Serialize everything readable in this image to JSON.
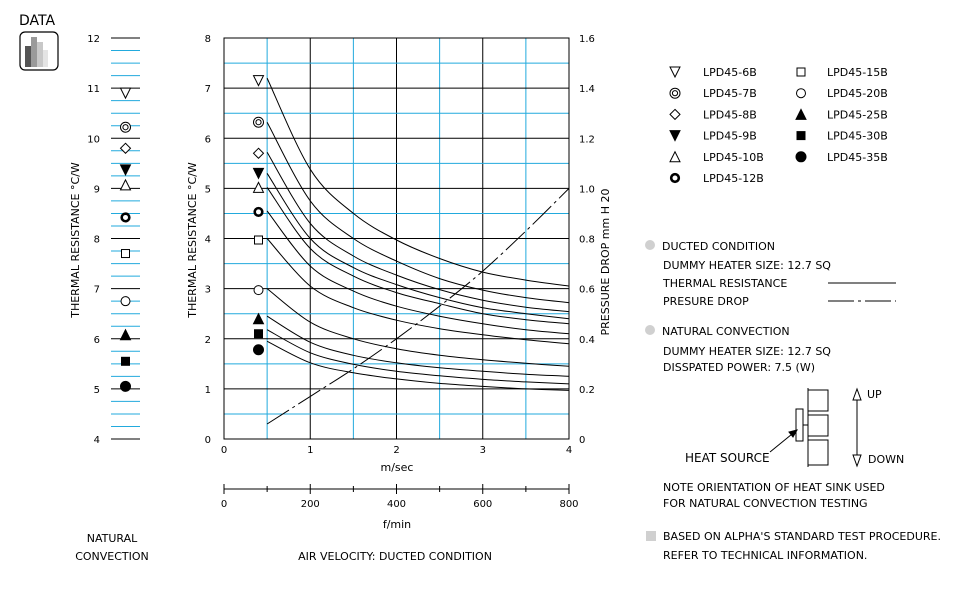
{
  "badge": {
    "label": "DATA"
  },
  "left_chart": {
    "type": "scatter",
    "ylabel": "THERMAL RESISTANCE °C/W",
    "ylim": [
      4,
      12
    ],
    "yticks": [
      "4",
      "5",
      "6",
      "7",
      "8",
      "9",
      "10",
      "11",
      "12"
    ],
    "caption": [
      "NATURAL",
      "CONVECTION"
    ],
    "points": [
      {
        "series": "LPD45-6B",
        "marker": "tri-down-open",
        "y": 10.9
      },
      {
        "series": "LPD45-7B",
        "marker": "double-circle",
        "y": 10.22
      },
      {
        "series": "LPD45-8B",
        "marker": "diamond-open",
        "y": 9.8
      },
      {
        "series": "LPD45-9B",
        "marker": "tri-down-filled",
        "y": 9.37
      },
      {
        "series": "LPD45-10B",
        "marker": "tri-up-open",
        "y": 9.07
      },
      {
        "series": "LPD45-12B",
        "marker": "thick-circle",
        "y": 8.42
      },
      {
        "series": "LPD45-15B",
        "marker": "square-open",
        "y": 7.7
      },
      {
        "series": "LPD45-20B",
        "marker": "circle-open",
        "y": 6.75
      },
      {
        "series": "LPD45-25B",
        "marker": "tri-up-filled",
        "y": 6.08
      },
      {
        "series": "LPD45-30B",
        "marker": "square-filled",
        "y": 5.55
      },
      {
        "series": "LPD45-35B",
        "marker": "circle-filled",
        "y": 5.05
      }
    ]
  },
  "chart_data": {
    "type": "line",
    "xlabel": "m/sec",
    "x2label": "f/min",
    "ylabel": "THERMAL RESISTANCE °C/W",
    "y2label": "PRESSURE DROP mm H 20",
    "xlim": [
      0,
      4
    ],
    "ylim": [
      0,
      8
    ],
    "y2lim": [
      0,
      1.6
    ],
    "xticks": [
      "0",
      "1",
      "2",
      "3",
      "4"
    ],
    "x2ticks": [
      "0",
      "200",
      "400",
      "600",
      "800"
    ],
    "yticks": [
      "0",
      "1",
      "2",
      "3",
      "4",
      "5",
      "6",
      "7",
      "8"
    ],
    "y2ticks": [
      "0",
      "0.2",
      "0.4",
      "0.6",
      "0.8",
      "1.0",
      "1.2",
      "1.4",
      "1.6"
    ],
    "caption": "AIR VELOCITY: DUCTED CONDITION",
    "x": [
      0.5,
      1,
      1.5,
      2,
      2.5,
      3,
      3.5,
      4
    ],
    "series": [
      {
        "name": "LPD45-6B",
        "marker": "tri-down-open",
        "natural_point": 7.15,
        "values": [
          7.2,
          5.38,
          4.5,
          3.97,
          3.6,
          3.33,
          3.17,
          3.05
        ]
      },
      {
        "name": "LPD45-7B",
        "marker": "double-circle",
        "natural_point": 6.32,
        "values": [
          6.32,
          4.75,
          4.0,
          3.55,
          3.2,
          2.97,
          2.82,
          2.72
        ]
      },
      {
        "name": "LPD45-8B",
        "marker": "diamond-open",
        "natural_point": 5.7,
        "values": [
          5.72,
          4.3,
          3.65,
          3.27,
          2.98,
          2.77,
          2.63,
          2.54
        ]
      },
      {
        "name": "LPD45-9B",
        "marker": "tri-down-filled",
        "natural_point": 5.3,
        "values": [
          5.3,
          4.0,
          3.42,
          3.08,
          2.82,
          2.62,
          2.5,
          2.4
        ]
      },
      {
        "name": "LPD45-10B",
        "marker": "tri-up-open",
        "natural_point": 5.02,
        "values": [
          5.02,
          3.8,
          3.25,
          2.92,
          2.7,
          2.5,
          2.38,
          2.3
        ]
      },
      {
        "name": "LPD45-12B",
        "marker": "thick-circle",
        "natural_point": 4.53,
        "values": [
          4.55,
          3.45,
          2.95,
          2.65,
          2.45,
          2.3,
          2.18,
          2.1
        ]
      },
      {
        "name": "LPD45-15B",
        "marker": "square-open",
        "natural_point": 3.97,
        "values": [
          4.0,
          3.05,
          2.62,
          2.37,
          2.2,
          2.08,
          1.98,
          1.9
        ]
      },
      {
        "name": "LPD45-20B",
        "marker": "circle-open",
        "natural_point": 2.97,
        "values": [
          3.0,
          2.33,
          2.0,
          1.8,
          1.67,
          1.58,
          1.51,
          1.45
        ]
      },
      {
        "name": "LPD45-25B",
        "marker": "tri-up-filled",
        "natural_point": 2.4,
        "values": [
          2.45,
          1.93,
          1.67,
          1.52,
          1.42,
          1.35,
          1.29,
          1.25
        ]
      },
      {
        "name": "LPD45-30B",
        "marker": "square-filled",
        "natural_point": 2.1,
        "values": [
          2.18,
          1.72,
          1.49,
          1.35,
          1.26,
          1.19,
          1.14,
          1.1
        ]
      },
      {
        "name": "LPD45-35B",
        "marker": "circle-filled",
        "natural_point": 1.78,
        "values": [
          1.95,
          1.52,
          1.32,
          1.2,
          1.11,
          1.05,
          1.0,
          0.97
        ]
      }
    ],
    "pressure_drop": {
      "x": [
        0.5,
        1,
        1.5,
        2,
        2.5,
        3,
        3.5,
        4
      ],
      "values": [
        0.06,
        0.17,
        0.28,
        0.4,
        0.53,
        0.67,
        0.83,
        1.0
      ]
    },
    "legend": "top-right",
    "grid": true
  },
  "notes": {
    "ducted_title": "DUCTED CONDITION",
    "ducted_heater": "DUMMY HEATER SIZE: 12.7 SQ",
    "thermal_resistance": "THERMAL RESISTANCE",
    "pressure_drop": "PRESURE DROP",
    "natural_title": "NATURAL CONVECTION",
    "natural_heater": "DUMMY HEATER SIZE: 12.7 SQ",
    "dissipated": "DISSPATED POWER: 7.5 (W)",
    "heat_source": "HEAT SOURCE",
    "up": "UP",
    "down": "DOWN",
    "orientation_1": "NOTE ORIENTATION OF HEAT SINK USED",
    "orientation_2": "FOR NATURAL CONVECTION TESTING",
    "standard_1": "BASED ON ALPHA'S STANDARD TEST PROCEDURE.",
    "standard_2": "REFER TO TECHNICAL INFORMATION."
  },
  "colors": {
    "grid": "#22aadd",
    "ink": "#000000",
    "bullet": "#d0d0d0"
  }
}
